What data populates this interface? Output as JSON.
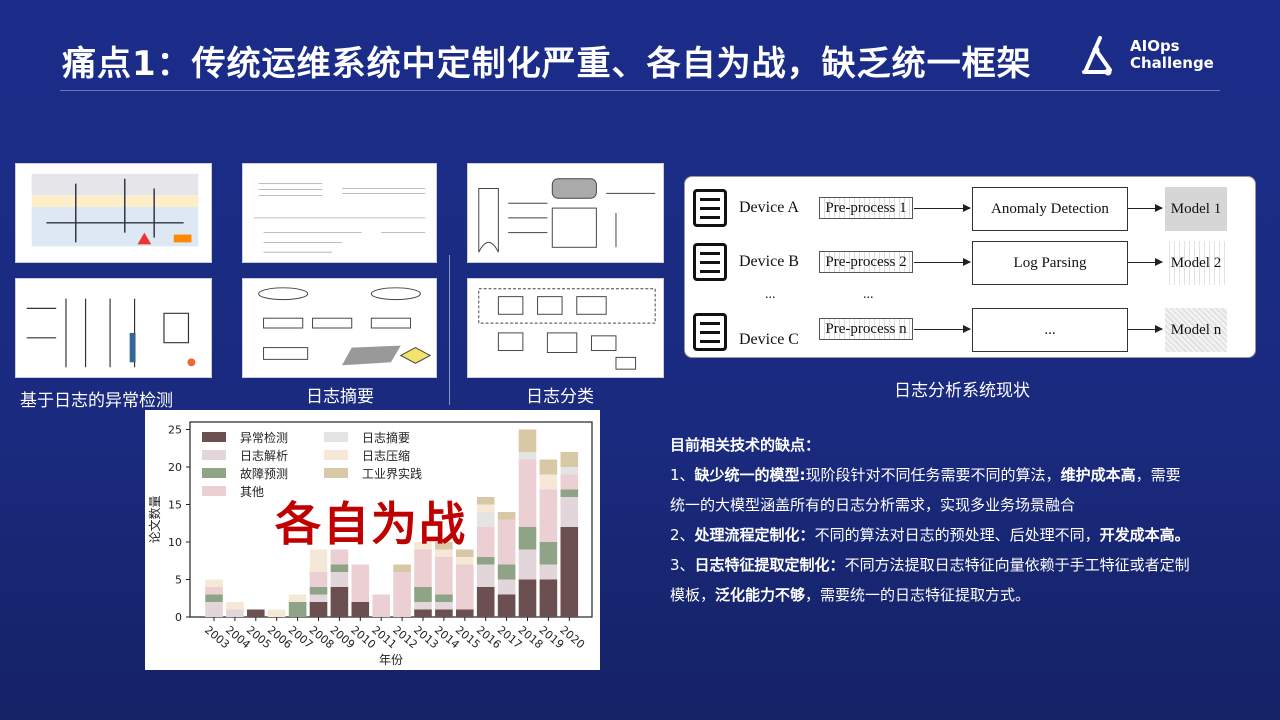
{
  "slide": {
    "title": "痛点1：传统运维系统中定制化严重、各自为战，缺乏统一框架",
    "logo": {
      "line1": "AIOps",
      "line2": "Challenge"
    }
  },
  "thumbnails": {
    "captions": [
      "基于日志的异常检测",
      "日志摘要",
      "日志分类"
    ]
  },
  "diagram": {
    "caption": "日志分析系统现状",
    "devices": [
      "Device A",
      "Device B",
      "Device C"
    ],
    "preprocess": [
      "Pre-process 1",
      "Pre-process 2",
      "Pre-process n"
    ],
    "tasks": [
      "Anomaly Detection",
      "Log Parsing",
      "..."
    ],
    "models": [
      "Model 1",
      "Model 2",
      "Model n"
    ],
    "ellipsis": "..."
  },
  "chart_data": {
    "type": "bar",
    "stacked": true,
    "overlay_text": "各自为战",
    "xlabel": "年份",
    "ylabel": "论文数量",
    "ylim": [
      0,
      26
    ],
    "yticks": [
      0,
      5,
      10,
      15,
      20,
      25
    ],
    "legend_position": "top-left",
    "categories": [
      "2003",
      "2004",
      "2005",
      "2006",
      "2007",
      "2008",
      "2009",
      "2010",
      "2011",
      "2012",
      "2013",
      "2014",
      "2015",
      "2016",
      "2017",
      "2018",
      "2019",
      "2020"
    ],
    "series": [
      {
        "name": "异常检测",
        "color": "#6b4f51",
        "values": [
          0,
          0,
          1,
          0,
          0,
          2,
          4,
          2,
          0,
          0,
          1,
          1,
          1,
          4,
          3,
          5,
          5,
          12
        ]
      },
      {
        "name": "日志解析",
        "color": "#e3d6da",
        "values": [
          2,
          1,
          0,
          0,
          0,
          1,
          2,
          0,
          0,
          0,
          1,
          1,
          0,
          3,
          2,
          4,
          2,
          4
        ]
      },
      {
        "name": "故障预测",
        "color": "#8fa487",
        "values": [
          1,
          0,
          0,
          0,
          2,
          1,
          1,
          0,
          0,
          0,
          2,
          1,
          0,
          1,
          2,
          3,
          3,
          1
        ]
      },
      {
        "name": "其他",
        "color": "#eccfd2",
        "values": [
          1,
          0,
          0,
          0,
          0,
          2,
          2,
          5,
          3,
          6,
          5,
          5,
          6,
          4,
          6,
          9,
          7,
          2
        ]
      },
      {
        "name": "日志摘要",
        "color": "#e4e5e3",
        "values": [
          0,
          0,
          0,
          0,
          0,
          0,
          0,
          0,
          0,
          0,
          0,
          0,
          0,
          2,
          0,
          1,
          0,
          1
        ]
      },
      {
        "name": "日志压缩",
        "color": "#f6e8d6",
        "values": [
          1,
          1,
          0,
          1,
          1,
          3,
          0,
          0,
          0,
          0,
          1,
          1,
          1,
          1,
          0,
          0,
          2,
          0
        ]
      },
      {
        "name": "工业界实践",
        "color": "#d8c8a6",
        "values": [
          0,
          0,
          0,
          0,
          0,
          0,
          0,
          0,
          0,
          1,
          0,
          1,
          1,
          1,
          1,
          3,
          2,
          2
        ]
      }
    ]
  },
  "notes": {
    "heading": "目前相关技术的缺点：",
    "items": [
      {
        "num": "1、",
        "bold": "缺少统一的模型:",
        "text1": "现阶段针对不同任务需要不同的算法，",
        "bold2": "维护成本高",
        "text2": "，需要统一的大模型涵盖所有的日志分析需求，实现多业务场景融合"
      },
      {
        "num": "2、",
        "bold": "处理流程定制化：",
        "text1": "不同的算法对日志的预处理、后处理不同，",
        "bold2": "开发成本高。",
        "text2": ""
      },
      {
        "num": "3、",
        "bold": "日志特征提取定制化：",
        "text1": "不同方法提取日志特征向量依赖于手工特征或者定制模板，",
        "bold2": "泛化能力不够",
        "text2": "，需要统一的日志特征提取方式。"
      }
    ]
  }
}
